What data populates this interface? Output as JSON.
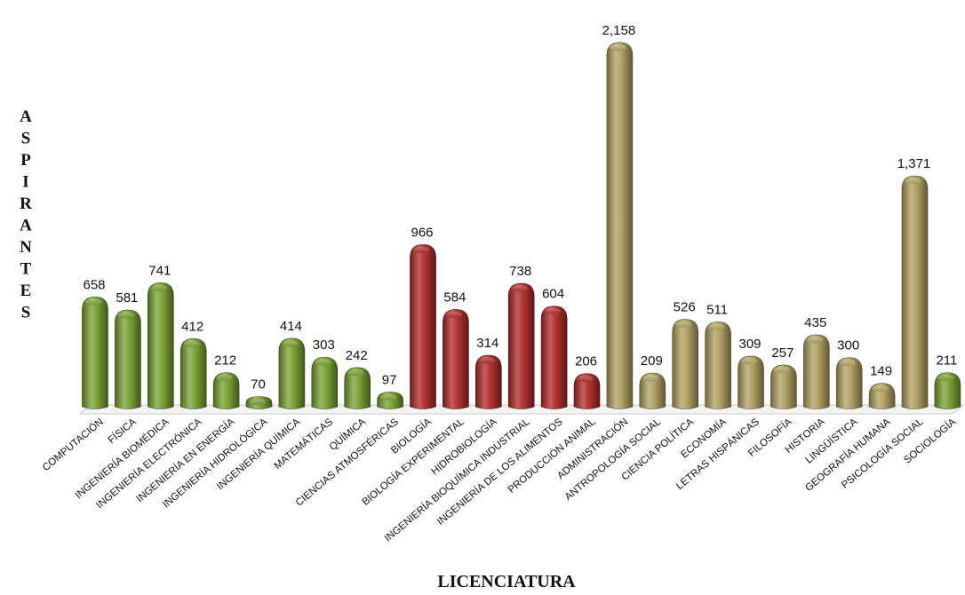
{
  "chart_data": {
    "type": "bar",
    "title": "",
    "xlabel": "LICENCIATURA",
    "ylabel": "ASPIRANTES",
    "ylim": [
      0,
      2200
    ],
    "grid": false,
    "legend": "none",
    "categories": [
      "COMPUTACIÓN",
      "FÍSICA",
      "INGENIERÍA BIOMÉDICA",
      "INGENIERÍA ELECTRÓNICA",
      "INGENIERÍA EN ENERGÍA",
      "INGENIERÍA HIDROLÓGICA",
      "INGENIERÍA QUÍMICA",
      "MATEMÁTICAS",
      "QUÍMICA",
      "CIENCIAS ATMOSFÉRICAS",
      "BIOLOGÍA",
      "BIOLOGÍA EXPERIMENTAL",
      "HIDROBIOLOGÍA",
      "INGENIERÍA BIOQUÍMICA INDUSTRIAL",
      "INGENIERÍA DE LOS ALIMENTOS",
      "PRODUCCIÓN ANIMAL",
      "ADMINISTRACIÓN",
      "ANTROPOLOGÍA SOCIAL",
      "CIENCIA POLÍTICA",
      "ECONOMÍA",
      "LETRAS HISPÁNICAS",
      "FILOSOFÍA",
      "HISTORIA",
      "LINGÜÍSTICA",
      "GEOGRAFÍA HUMANA",
      "PSICOLOGÍA SOCIAL",
      "SOCIOLOGÍA"
    ],
    "values": [
      658,
      581,
      741,
      412,
      212,
      70,
      414,
      303,
      242,
      97,
      966,
      584,
      314,
      738,
      604,
      206,
      2158,
      209,
      526,
      511,
      309,
      257,
      435,
      300,
      149,
      1371,
      211
    ],
    "value_labels": [
      "658",
      "581",
      "741",
      "412",
      "212",
      "70",
      "414",
      "303",
      "242",
      "97",
      "966",
      "584",
      "314",
      "738",
      "604",
      "206",
      "2,158",
      "209",
      "526",
      "511",
      "309",
      "257",
      "435",
      "300",
      "149",
      "1,371",
      "211"
    ],
    "groups": [
      "green",
      "green",
      "green",
      "green",
      "green",
      "green",
      "green",
      "green",
      "green",
      "green",
      "red",
      "red",
      "red",
      "red",
      "red",
      "red",
      "tan",
      "tan",
      "tan",
      "tan",
      "tan",
      "tan",
      "tan",
      "tan",
      "tan",
      "tan",
      "green"
    ],
    "colors": {
      "green": "#77A030",
      "red": "#B02A2A",
      "tan": "#B0A060"
    }
  }
}
